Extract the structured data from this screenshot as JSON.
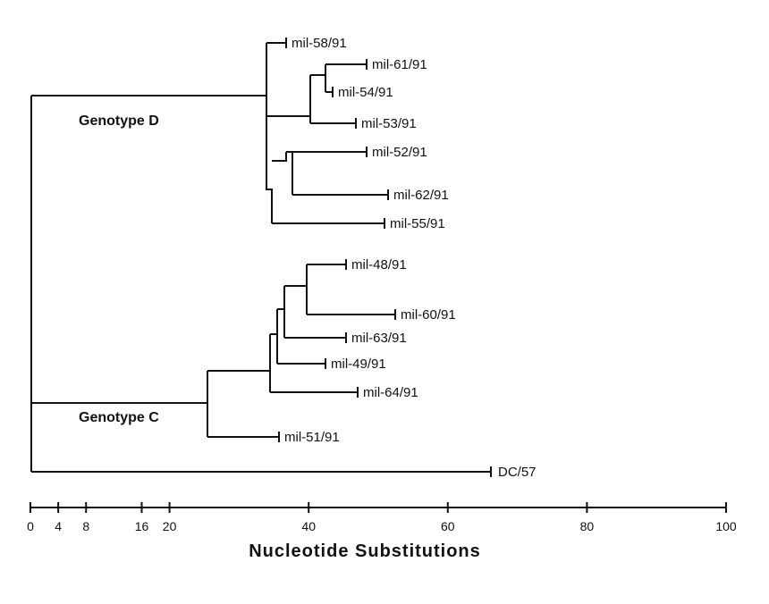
{
  "tree": {
    "clade_labels": {
      "genotype_d": "Genotype D",
      "genotype_c": "Genotype C"
    },
    "leaves": [
      {
        "id": "mil58",
        "label": "mil-58/91",
        "substitutions": 38
      },
      {
        "id": "mil61",
        "label": "mil-61/91",
        "substitutions": 48
      },
      {
        "id": "mil54",
        "label": "mil-54/91",
        "substitutions": 44
      },
      {
        "id": "mil53",
        "label": "mil-53/91",
        "substitutions": 47
      },
      {
        "id": "mil52",
        "label": "mil-52/91",
        "substitutions": 48
      },
      {
        "id": "mil62",
        "label": "mil-62/91",
        "substitutions": 51
      },
      {
        "id": "mil55",
        "label": "mil-55/91",
        "substitutions": 51
      },
      {
        "id": "mil48",
        "label": "mil-48/91",
        "substitutions": 45
      },
      {
        "id": "mil60",
        "label": "mil-60/91",
        "substitutions": 52
      },
      {
        "id": "mil63",
        "label": "mil-63/91",
        "substitutions": 45
      },
      {
        "id": "mil49",
        "label": "mil-49/91",
        "substitutions": 42
      },
      {
        "id": "mil64",
        "label": "mil-64/91",
        "substitutions": 47
      },
      {
        "id": "mil51",
        "label": "mil-51/91",
        "substitutions": 36
      },
      {
        "id": "dc57",
        "label": "DC/57",
        "substitutions": 66
      }
    ]
  },
  "axis": {
    "title": "Nucleotide Substitutions",
    "range": [
      0,
      100
    ],
    "ticks": [
      {
        "value": 0,
        "label": "0"
      },
      {
        "value": 4,
        "label": "4"
      },
      {
        "value": 8,
        "label": "8"
      },
      {
        "value": 16,
        "label": "16"
      },
      {
        "value": 20,
        "label": "20"
      },
      {
        "value": 40,
        "label": "40"
      },
      {
        "value": 60,
        "label": "60"
      },
      {
        "value": 80,
        "label": "80"
      },
      {
        "value": 100,
        "label": "100"
      }
    ]
  }
}
